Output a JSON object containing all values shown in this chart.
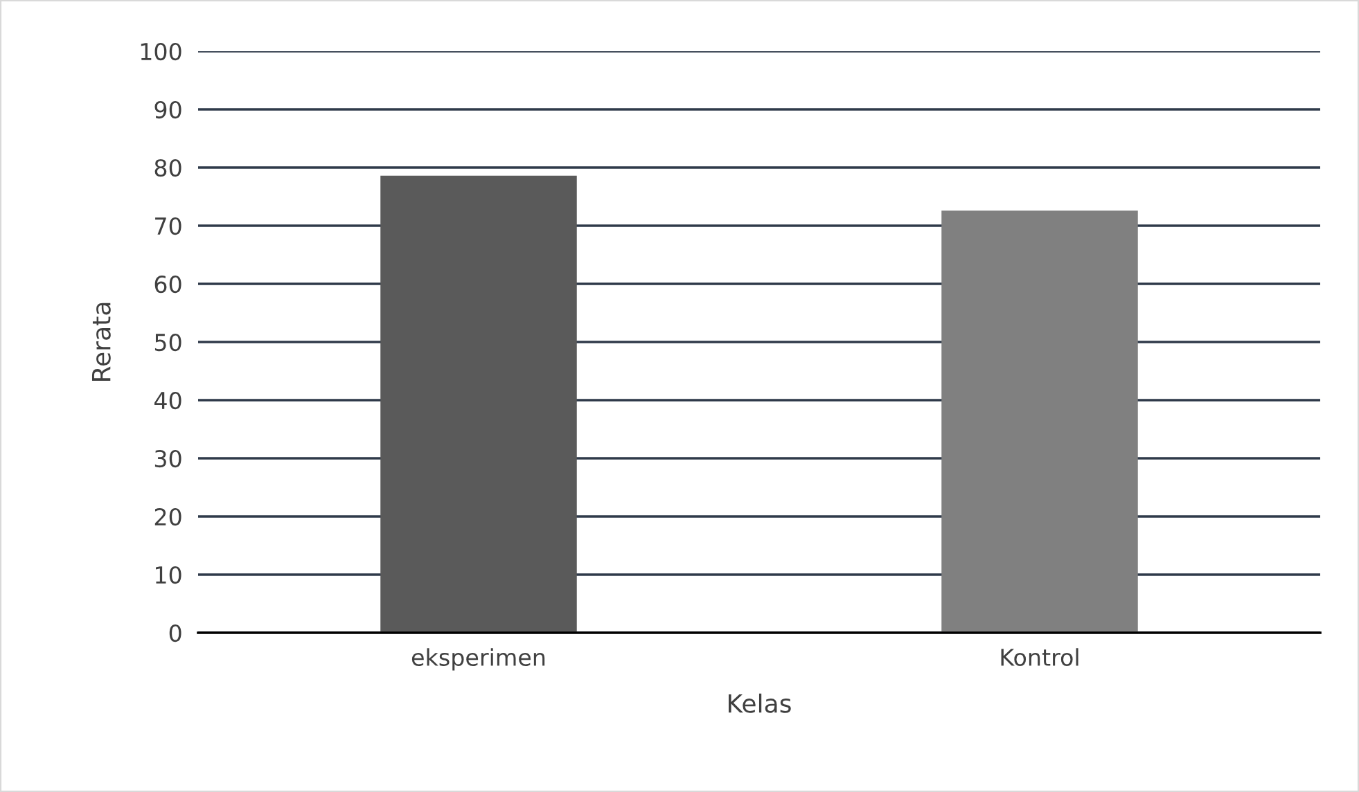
{
  "chart_data": {
    "type": "bar",
    "xlabel": "Kelas",
    "ylabel": "Rerata",
    "categories": [
      "eksperimen",
      "Kontrol"
    ],
    "values": [
      78.6,
      72.6
    ],
    "colors": [
      "#5a5a5a",
      "#808080"
    ],
    "ylim": [
      0,
      100
    ],
    "yticks": [
      0,
      10,
      20,
      30,
      40,
      50,
      60,
      70,
      80,
      90,
      100
    ],
    "grid": "y"
  }
}
